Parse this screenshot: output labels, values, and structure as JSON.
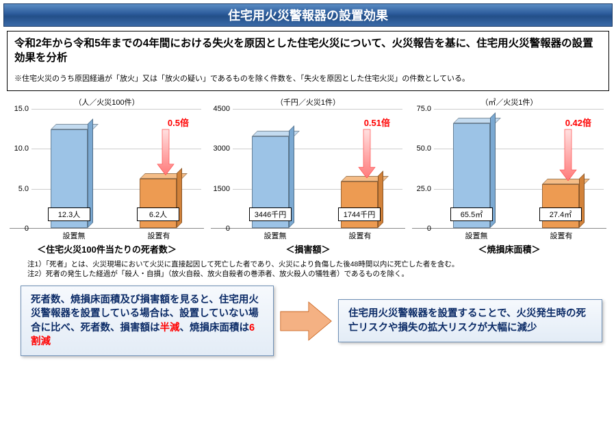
{
  "title": "住宅用火災警報器の設置効果",
  "intro_main": "令和2年から令和5年までの4年間における失火を原因とした住宅火災について、火災報告を基に、住宅用火災警報器の設置効果を分析",
  "intro_note": "※住宅火災のうち原因経過が「放火」又は「放火の疑い」であるものを除く件数を、「失火を原因とした住宅火災」の件数としている。",
  "colors": {
    "bar_without_front": "#9cc3e6",
    "bar_without_top": "#c3dbf0",
    "bar_without_side": "#7ba9d2",
    "bar_with_front": "#ed9b52",
    "bar_with_top": "#f5bd87",
    "bar_with_side": "#d2823a",
    "arrow_fill": "#f4b183",
    "arrow_stroke": "#c55a11",
    "down_arrow_fill": "#ff7a7a",
    "grid": "#cccccc"
  },
  "x_labels": {
    "without": "設置無",
    "with": "設置有"
  },
  "charts": [
    {
      "unit": "（人／火災100件）",
      "title": "＜住宅火災100件当たりの死者数＞",
      "ymax": 15.0,
      "yticks": [
        0,
        5.0,
        10.0,
        15.0
      ],
      "ytick_decimals": 1,
      "without_val": 12.3,
      "without_label": "12.3人",
      "with_val": 6.2,
      "with_label": "6.2人",
      "ratio": "0.5倍"
    },
    {
      "unit": "（千円／火災1件）",
      "title": "＜損害額＞",
      "ymax": 4500,
      "yticks": [
        0,
        1500,
        3000,
        4500
      ],
      "ytick_decimals": 0,
      "without_val": 3446,
      "without_label": "3446千円",
      "with_val": 1744,
      "with_label": "1744千円",
      "ratio": "0.51倍"
    },
    {
      "unit": "（㎡／火災1件）",
      "title": "＜焼損床面積＞",
      "ymax": 75.0,
      "yticks": [
        0,
        25.0,
        50.0,
        75.0
      ],
      "ytick_decimals": 1,
      "without_val": 65.5,
      "without_label": "65.5㎡",
      "with_val": 27.4,
      "with_label": "27.4㎡",
      "ratio": "0.42倍"
    }
  ],
  "notes": [
    "注1）「死者」とは、火災現場において火災に直接起因して死亡した者であり、火災により負傷した後48時間以内に死亡した者を含む。",
    "注2）死者の発生した経過が「殺人・自損」（放火自殺、放火自殺者の巻添者、放火殺人の犠牲者）であるものを除く。"
  ],
  "conclusion_left_parts": {
    "p1": "死者数、焼損床面積及び損害額を見ると、住宅用火災警報器を設置している場合は、設置していない場合に比べ、死者数、損害額は",
    "p2": "半減",
    "p3": "、焼損床面積は",
    "p4": "6割減"
  },
  "conclusion_right": "住宅用火災警報器を設置することで、火災発生時の死亡リスクや損失の拡大リスクが大幅に減少"
}
